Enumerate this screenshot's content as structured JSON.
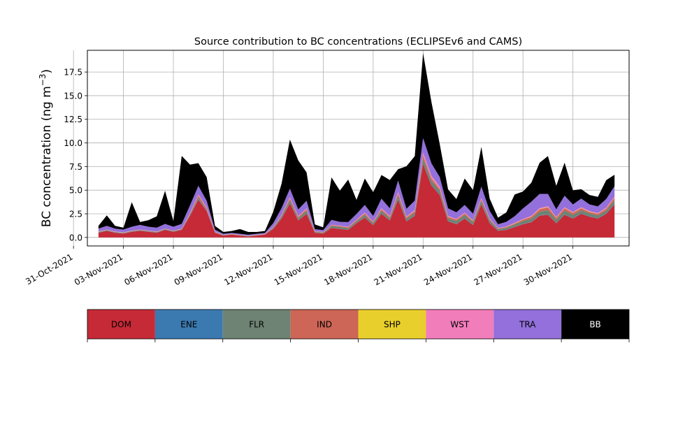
{
  "chart_data": {
    "type": "area",
    "stacked": true,
    "title": "Source contribution to BC concentrations (ECLIPSEv6 and CAMS)",
    "xlabel": "",
    "ylabel": "BC concentration (ng m⁻³)",
    "ylabel_main": "BC concentration (ng m",
    "ylabel_exp": "−3",
    "ylabel_close": ")",
    "grid": true,
    "ylim": [
      -0.9,
      19.8
    ],
    "xlim": [
      "2021-10-31 20:00",
      "2021-12-03 09:00"
    ],
    "yticks": [
      0.0,
      2.5,
      5.0,
      7.5,
      10.0,
      12.5,
      15.0,
      17.5
    ],
    "ytick_labels": [
      "0.0",
      "2.5",
      "5.0",
      "7.5",
      "10.0",
      "12.5",
      "15.0",
      "17.5"
    ],
    "xticks": [
      "2021-10-31",
      "2021-11-03",
      "2021-11-06",
      "2021-11-09",
      "2021-11-12",
      "2021-11-15",
      "2021-11-18",
      "2021-11-21",
      "2021-11-24",
      "2021-11-27",
      "2021-11-30"
    ],
    "xtick_labels": [
      "31-Oct-2021",
      "03-Nov-2021",
      "06-Nov-2021",
      "09-Nov-2021",
      "12-Nov-2021",
      "15-Nov-2021",
      "18-Nov-2021",
      "21-Nov-2021",
      "24-Nov-2021",
      "27-Nov-2021",
      "30-Nov-2021"
    ],
    "legend_position": "bottom",
    "x": [
      "2021-11-01 12:00",
      "2021-11-02 00:00",
      "2021-11-02 12:00",
      "2021-11-03 00:00",
      "2021-11-03 12:00",
      "2021-11-04 00:00",
      "2021-11-04 12:00",
      "2021-11-05 00:00",
      "2021-11-05 12:00",
      "2021-11-06 00:00",
      "2021-11-06 12:00",
      "2021-11-07 00:00",
      "2021-11-07 12:00",
      "2021-11-08 00:00",
      "2021-11-08 12:00",
      "2021-11-09 00:00",
      "2021-11-09 12:00",
      "2021-11-10 00:00",
      "2021-11-10 12:00",
      "2021-11-11 00:00",
      "2021-11-11 12:00",
      "2021-11-12 00:00",
      "2021-11-12 12:00",
      "2021-11-13 00:00",
      "2021-11-13 12:00",
      "2021-11-14 00:00",
      "2021-11-14 12:00",
      "2021-11-15 00:00",
      "2021-11-15 12:00",
      "2021-11-16 00:00",
      "2021-11-16 12:00",
      "2021-11-17 00:00",
      "2021-11-17 12:00",
      "2021-11-18 00:00",
      "2021-11-18 12:00",
      "2021-11-19 00:00",
      "2021-11-19 12:00",
      "2021-11-20 00:00",
      "2021-11-20 12:00",
      "2021-11-21 00:00",
      "2021-11-21 12:00",
      "2021-11-22 00:00",
      "2021-11-22 12:00",
      "2021-11-23 00:00",
      "2021-11-23 12:00",
      "2021-11-24 00:00",
      "2021-11-24 12:00",
      "2021-11-25 00:00",
      "2021-11-25 12:00",
      "2021-11-26 00:00",
      "2021-11-26 12:00",
      "2021-11-27 00:00",
      "2021-11-27 12:00",
      "2021-11-28 00:00",
      "2021-11-28 12:00",
      "2021-11-29 00:00",
      "2021-11-29 12:00",
      "2021-11-30 00:00",
      "2021-11-30 12:00",
      "2021-12-01 00:00",
      "2021-12-01 12:00",
      "2021-12-02 00:00",
      "2021-12-02 12:00"
    ],
    "series": [
      {
        "name": "DOM",
        "color": "#c62a37",
        "values": [
          0.5,
          0.7,
          0.5,
          0.4,
          0.6,
          0.7,
          0.6,
          0.5,
          0.8,
          0.6,
          0.8,
          2.3,
          4.0,
          2.8,
          0.5,
          0.2,
          0.3,
          0.2,
          0.1,
          0.2,
          0.3,
          0.9,
          2.0,
          3.6,
          1.8,
          2.5,
          0.5,
          0.4,
          1.0,
          0.9,
          0.8,
          1.5,
          2.1,
          1.3,
          2.5,
          1.8,
          4.0,
          1.7,
          2.3,
          7.8,
          5.5,
          4.5,
          1.7,
          1.4,
          2.0,
          1.3,
          3.5,
          1.5,
          0.7,
          0.8,
          1.1,
          1.4,
          1.6,
          2.3,
          2.4,
          1.5,
          2.4,
          2.0,
          2.5,
          2.2,
          2.0,
          2.5,
          3.5
        ]
      },
      {
        "name": "ENE",
        "color": "#3b7ab1",
        "values": [
          0.02,
          0.02,
          0.02,
          0.02,
          0.02,
          0.02,
          0.02,
          0.02,
          0.02,
          0.02,
          0.02,
          0.03,
          0.04,
          0.03,
          0.01,
          0.01,
          0.01,
          0.01,
          0.01,
          0.01,
          0.01,
          0.02,
          0.03,
          0.04,
          0.03,
          0.03,
          0.01,
          0.01,
          0.02,
          0.02,
          0.02,
          0.02,
          0.03,
          0.02,
          0.03,
          0.03,
          0.05,
          0.03,
          0.03,
          0.08,
          0.06,
          0.05,
          0.03,
          0.03,
          0.03,
          0.03,
          0.04,
          0.03,
          0.02,
          0.02,
          0.02,
          0.03,
          0.03,
          0.03,
          0.03,
          0.03,
          0.04,
          0.04,
          0.04,
          0.04,
          0.04,
          0.04,
          0.04
        ]
      },
      {
        "name": "FLR",
        "color": "#6e8373",
        "values": [
          0.05,
          0.05,
          0.05,
          0.05,
          0.05,
          0.05,
          0.05,
          0.05,
          0.05,
          0.05,
          0.05,
          0.1,
          0.2,
          0.1,
          0.05,
          0.03,
          0.03,
          0.03,
          0.03,
          0.03,
          0.03,
          0.1,
          0.2,
          0.3,
          0.2,
          0.3,
          0.08,
          0.08,
          0.2,
          0.2,
          0.15,
          0.2,
          0.25,
          0.2,
          0.3,
          0.2,
          0.4,
          0.25,
          0.3,
          0.5,
          0.45,
          0.4,
          0.3,
          0.3,
          0.35,
          0.3,
          0.35,
          0.3,
          0.15,
          0.2,
          0.25,
          0.3,
          0.35,
          0.4,
          0.45,
          0.35,
          0.4,
          0.35,
          0.35,
          0.3,
          0.3,
          0.3,
          0.4
        ]
      },
      {
        "name": "IND",
        "color": "#cd6656",
        "values": [
          0.03,
          0.03,
          0.03,
          0.03,
          0.03,
          0.03,
          0.03,
          0.03,
          0.03,
          0.03,
          0.03,
          0.1,
          0.2,
          0.15,
          0.03,
          0.02,
          0.02,
          0.02,
          0.02,
          0.02,
          0.02,
          0.05,
          0.1,
          0.2,
          0.15,
          0.15,
          0.05,
          0.05,
          0.08,
          0.08,
          0.1,
          0.1,
          0.15,
          0.1,
          0.15,
          0.15,
          0.2,
          0.15,
          0.15,
          0.3,
          0.25,
          0.2,
          0.15,
          0.15,
          0.15,
          0.1,
          0.15,
          0.1,
          0.08,
          0.08,
          0.1,
          0.15,
          0.2,
          0.25,
          0.3,
          0.2,
          0.25,
          0.2,
          0.2,
          0.15,
          0.15,
          0.2,
          0.25
        ]
      },
      {
        "name": "SHP",
        "color": "#e8cf2c",
        "values": [
          0.01,
          0.01,
          0.01,
          0.01,
          0.01,
          0.01,
          0.01,
          0.01,
          0.01,
          0.01,
          0.01,
          0.02,
          0.02,
          0.02,
          0.01,
          0.01,
          0.01,
          0.01,
          0.01,
          0.01,
          0.01,
          0.01,
          0.02,
          0.02,
          0.02,
          0.02,
          0.01,
          0.01,
          0.01,
          0.01,
          0.01,
          0.01,
          0.02,
          0.01,
          0.02,
          0.02,
          0.02,
          0.02,
          0.02,
          0.03,
          0.03,
          0.03,
          0.02,
          0.02,
          0.02,
          0.02,
          0.02,
          0.02,
          0.01,
          0.01,
          0.02,
          0.02,
          0.02,
          0.03,
          0.03,
          0.02,
          0.02,
          0.02,
          0.02,
          0.02,
          0.02,
          0.02,
          0.02
        ]
      },
      {
        "name": "WST",
        "color": "#f27dbb",
        "values": [
          0.02,
          0.02,
          0.02,
          0.02,
          0.02,
          0.02,
          0.02,
          0.02,
          0.02,
          0.02,
          0.02,
          0.05,
          0.1,
          0.08,
          0.02,
          0.01,
          0.01,
          0.01,
          0.01,
          0.01,
          0.01,
          0.03,
          0.05,
          0.1,
          0.06,
          0.08,
          0.02,
          0.02,
          0.04,
          0.04,
          0.04,
          0.05,
          0.08,
          0.05,
          0.1,
          0.08,
          0.15,
          0.08,
          0.1,
          0.3,
          0.25,
          0.2,
          0.08,
          0.06,
          0.08,
          0.06,
          0.12,
          0.06,
          0.03,
          0.04,
          0.05,
          0.06,
          0.08,
          0.1,
          0.1,
          0.07,
          0.1,
          0.08,
          0.1,
          0.08,
          0.08,
          0.1,
          0.12
        ]
      },
      {
        "name": "TRA",
        "color": "#9370db",
        "values": [
          0.3,
          0.4,
          0.3,
          0.3,
          0.4,
          0.5,
          0.4,
          0.4,
          0.5,
          0.4,
          0.5,
          0.8,
          0.9,
          0.7,
          0.2,
          0.1,
          0.1,
          0.1,
          0.1,
          0.1,
          0.1,
          0.4,
          0.7,
          0.9,
          0.7,
          0.8,
          0.2,
          0.2,
          0.5,
          0.4,
          0.5,
          0.6,
          0.8,
          0.6,
          1.0,
          0.8,
          1.2,
          0.8,
          1.0,
          1.5,
          1.3,
          1.0,
          0.8,
          0.7,
          0.8,
          0.7,
          1.2,
          0.8,
          0.4,
          0.5,
          0.7,
          1.1,
          1.5,
          1.5,
          1.3,
          0.8,
          1.2,
          0.8,
          0.9,
          0.7,
          0.7,
          0.9,
          1.1
        ]
      },
      {
        "name": "BB",
        "color": "#000000",
        "values": [
          0.3,
          1.1,
          0.3,
          0.2,
          2.6,
          0.3,
          0.7,
          1.2,
          3.5,
          0.6,
          7.2,
          4.3,
          2.4,
          2.5,
          0.4,
          0.2,
          0.2,
          0.5,
          0.3,
          0.2,
          0.2,
          1.2,
          2.6,
          5.2,
          5.2,
          3.0,
          0.5,
          0.3,
          4.5,
          3.3,
          4.5,
          1.5,
          2.8,
          2.5,
          2.5,
          3.0,
          1.2,
          4.5,
          4.7,
          9.0,
          6.5,
          3.5,
          2.0,
          1.4,
          2.8,
          2.5,
          4.2,
          1.3,
          0.7,
          1.0,
          2.3,
          1.8,
          2.0,
          3.3,
          4.0,
          2.5,
          3.5,
          1.5,
          1.0,
          1.0,
          1.0,
          2.0,
          1.2
        ]
      }
    ],
    "legend": {
      "labels": [
        "DOM",
        "ENE",
        "FLR",
        "IND",
        "SHP",
        "WST",
        "TRA",
        "BB"
      ],
      "colors": [
        "#c62a37",
        "#3b7ab1",
        "#6e8373",
        "#cd6656",
        "#e8cf2c",
        "#f27dbb",
        "#9370db",
        "#000000"
      ],
      "text_colors": [
        "#000000",
        "#000000",
        "#000000",
        "#000000",
        "#000000",
        "#000000",
        "#000000",
        "#ffffff"
      ]
    }
  }
}
